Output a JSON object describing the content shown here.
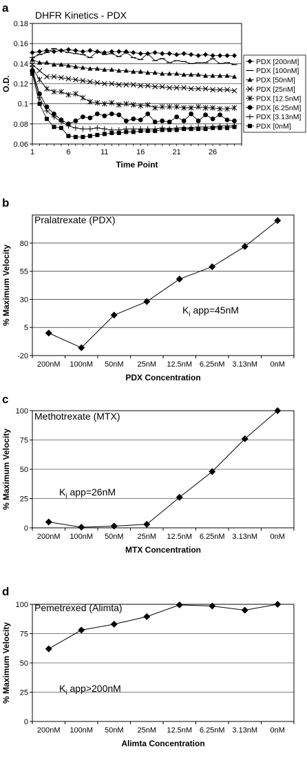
{
  "chart_data": [
    {
      "panel": "a",
      "type": "line",
      "title": "DHFR Kinetics - PDX",
      "xlabel": "Time Point",
      "ylabel": "O.D.",
      "xlim": [
        1,
        30
      ],
      "ylim": [
        0.06,
        0.18
      ],
      "xticks": [
        "1",
        "6",
        "11",
        "16",
        "21",
        "26"
      ],
      "yticks": [
        "0.06",
        "0.08",
        "0.1",
        "0.12",
        "0.14",
        "0.16",
        "0.18"
      ],
      "grid": "horizontal",
      "legend_position": "right",
      "series": [
        {
          "name": "PDX [200nM]",
          "marker": "diamond",
          "values": [
            0.151,
            0.152,
            0.153,
            0.152,
            0.153,
            0.154,
            0.153,
            0.152,
            0.153,
            0.152,
            0.151,
            0.152,
            0.152,
            0.152,
            0.151,
            0.15,
            0.15,
            0.151,
            0.15,
            0.15,
            0.149,
            0.15,
            0.149,
            0.148,
            0.149,
            0.148,
            0.148,
            0.148,
            0.148
          ]
        },
        {
          "name": "PDX [100nM]",
          "marker": "dash",
          "values": [
            0.146,
            0.149,
            0.151,
            0.155,
            0.153,
            0.151,
            0.15,
            0.149,
            0.146,
            0.152,
            0.149,
            0.15,
            0.147,
            0.151,
            0.146,
            0.144,
            0.15,
            0.143,
            0.145,
            0.141,
            0.143,
            0.142,
            0.14,
            0.141,
            0.141,
            0.145,
            0.14,
            0.141,
            0.139
          ]
        },
        {
          "name": "PDX [50nM]",
          "marker": "triangle",
          "values": [
            0.144,
            0.141,
            0.141,
            0.139,
            0.139,
            0.138,
            0.137,
            0.136,
            0.135,
            0.135,
            0.134,
            0.134,
            0.133,
            0.133,
            0.132,
            0.132,
            0.131,
            0.131,
            0.13,
            0.13,
            0.13,
            0.129,
            0.129,
            0.129,
            0.128,
            0.128,
            0.128,
            0.128,
            0.127
          ]
        },
        {
          "name": "PDX [25nM]",
          "marker": "x",
          "values": [
            0.139,
            0.133,
            0.127,
            0.127,
            0.126,
            0.125,
            0.124,
            0.123,
            0.122,
            0.121,
            0.12,
            0.12,
            0.119,
            0.119,
            0.119,
            0.118,
            0.118,
            0.117,
            0.117,
            0.116,
            0.116,
            0.116,
            0.115,
            0.115,
            0.115,
            0.114,
            0.114,
            0.114,
            0.113
          ]
        },
        {
          "name": "PDX [12.5nM]",
          "marker": "star",
          "values": [
            0.136,
            0.124,
            0.115,
            0.112,
            0.112,
            0.109,
            0.11,
            0.106,
            0.102,
            0.101,
            0.1,
            0.101,
            0.099,
            0.1,
            0.099,
            0.098,
            0.099,
            0.096,
            0.097,
            0.097,
            0.097,
            0.096,
            0.096,
            0.097,
            0.096,
            0.096,
            0.095,
            0.095,
            0.096
          ]
        },
        {
          "name": "PDX [6.25nM]",
          "marker": "circle",
          "values": [
            0.133,
            0.11,
            0.097,
            0.09,
            0.084,
            0.08,
            0.083,
            0.087,
            0.086,
            0.09,
            0.088,
            0.09,
            0.089,
            0.083,
            0.085,
            0.084,
            0.09,
            0.082,
            0.083,
            0.082,
            0.087,
            0.083,
            0.09,
            0.083,
            0.089,
            0.085,
            0.089,
            0.084,
            0.083
          ]
        },
        {
          "name": "PDX [3.13nM]",
          "marker": "plus",
          "values": [
            0.132,
            0.106,
            0.093,
            0.087,
            0.082,
            0.078,
            0.076,
            0.075,
            0.075,
            0.076,
            0.075,
            0.074,
            0.074,
            0.075,
            0.075,
            0.075,
            0.075,
            0.075,
            0.076,
            0.075,
            0.076,
            0.076,
            0.076,
            0.077,
            0.077,
            0.077,
            0.078,
            0.078,
            0.078
          ]
        },
        {
          "name": "PDX [0nM]",
          "marker": "square",
          "values": [
            0.13,
            0.1,
            0.085,
            0.077,
            0.076,
            0.068,
            0.067,
            0.067,
            0.068,
            0.069,
            0.07,
            0.071,
            0.071,
            0.072,
            0.072,
            0.073,
            0.073,
            0.073,
            0.074,
            0.074,
            0.074,
            0.075,
            0.075,
            0.075,
            0.075,
            0.076,
            0.076,
            0.076,
            0.077
          ]
        }
      ]
    },
    {
      "panel": "b",
      "type": "line",
      "title": "Pralatrexate (PDX)",
      "xlabel": "PDX Concentration",
      "ylabel": "% Maximum Velocity",
      "annotation": {
        "pre": "K",
        "sub": "i",
        "post": " app=45nM"
      },
      "categories": [
        "200nM",
        "100nM",
        "50nM",
        "25nM",
        "12.5nM",
        "6.25nM",
        "3.13nM",
        "0nM"
      ],
      "values": [
        0,
        -13,
        16,
        28,
        48,
        59,
        77,
        100
      ],
      "ylim": [
        -20,
        105
      ],
      "yticks": [
        -20,
        5,
        30,
        55,
        80
      ],
      "grid": "horizontal"
    },
    {
      "panel": "c",
      "type": "line",
      "title": "Methotrexate (MTX)",
      "xlabel": "MTX Concentration",
      "ylabel": "% Maximum Velocity",
      "annotation": {
        "pre": "K",
        "sub": "i",
        "post": " app=26nM"
      },
      "categories": [
        "200nM",
        "100nM",
        "50nM",
        "25nM",
        "12.5nM",
        "6.25nM",
        "3.13nM",
        "0nM"
      ],
      "values": [
        5,
        0.5,
        1.5,
        3,
        26,
        48,
        76,
        100
      ],
      "ylim": [
        0,
        100
      ],
      "yticks": [
        0,
        25,
        50,
        75,
        100
      ],
      "grid": "horizontal"
    },
    {
      "panel": "d",
      "type": "line",
      "title": "Pemetrexed (Alimta)",
      "xlabel": "Alimta Concentration",
      "ylabel": "% Maximum Velocity",
      "annotation": {
        "pre": "K",
        "sub": "i",
        "post": " app>200nM"
      },
      "categories": [
        "200nM",
        "100nM",
        "50nM",
        "25nM",
        "12.5nM",
        "6.25nM",
        "3.13nM",
        "0nM"
      ],
      "values": [
        62,
        78,
        83,
        89.5,
        99.5,
        98.5,
        95,
        100
      ],
      "ylim": [
        0,
        100
      ],
      "yticks": [
        0,
        25,
        50,
        75,
        100
      ],
      "grid": "horizontal"
    }
  ]
}
